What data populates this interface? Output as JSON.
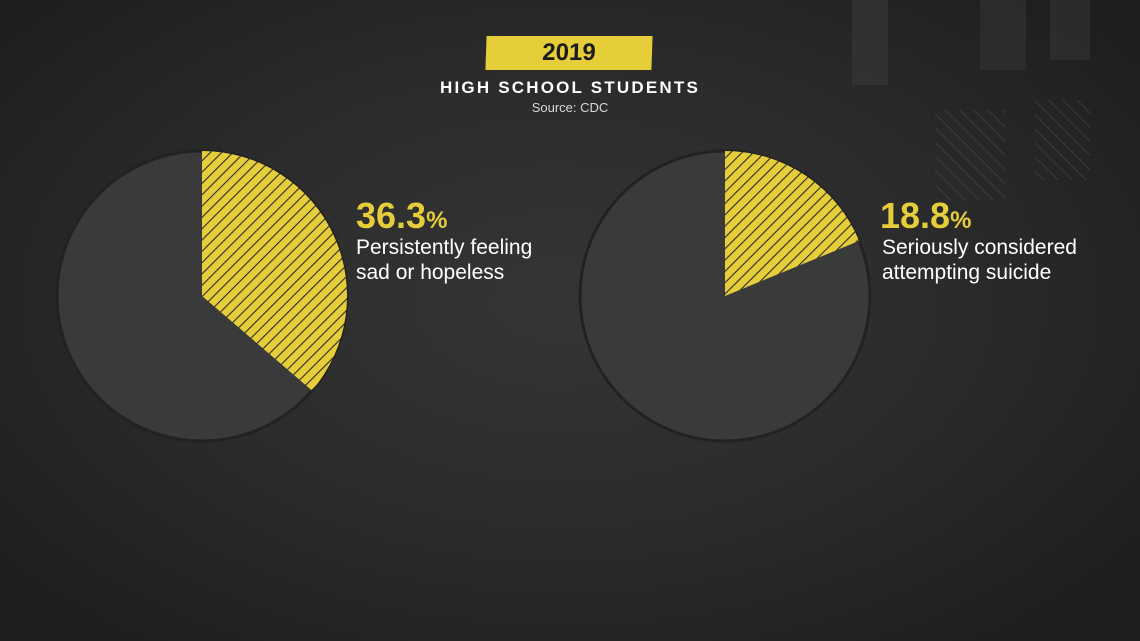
{
  "header": {
    "year": "2019",
    "subtitle": "HIGH SCHOOL STUDENTS",
    "source": "Source: CDC"
  },
  "colors": {
    "accent": "#e6cd3a",
    "pie_base": "#3a3a3b",
    "pie_border": "#222223",
    "hatch": "#2c2c2c"
  },
  "chart_data": [
    {
      "type": "pie",
      "slices": [
        {
          "value": 36.3,
          "value_text": "36.3",
          "unit": "%",
          "label_line1": "Persistently feeling",
          "label_line2": "sad or hopeless"
        }
      ]
    },
    {
      "type": "pie",
      "slices": [
        {
          "value": 18.8,
          "value_text": "18.8",
          "unit": "%",
          "label_line1": "Seriously considered",
          "label_line2": "attempting suicide"
        }
      ]
    }
  ]
}
